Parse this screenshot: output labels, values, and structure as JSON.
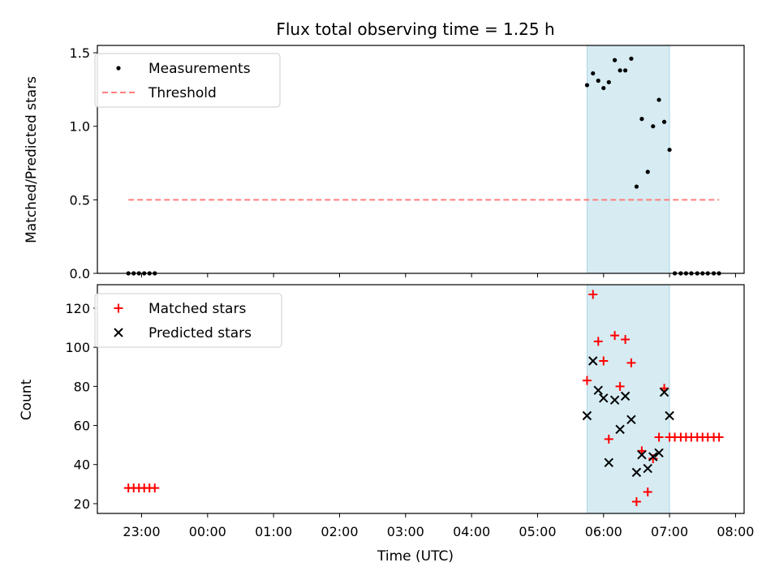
{
  "chart_data": {
    "title": "Flux total observing time = 1.25 h",
    "xlabel": "Time (UTC)",
    "x_tick_labels": [
      "23:00",
      "00:00",
      "01:00",
      "02:00",
      "03:00",
      "04:00",
      "05:00",
      "06:00",
      "07:00",
      "08:00"
    ],
    "x_ticks_hours": [
      23,
      24,
      25,
      26,
      27,
      28,
      29,
      30,
      31,
      32
    ],
    "xlim_hours": [
      22.33,
      32.13
    ],
    "shaded_span_hours": [
      29.75,
      31.0
    ],
    "shaded_color": "#add8e6",
    "panels": [
      {
        "type": "scatter",
        "ylabel": "Matched/Predicted stars",
        "ylim": [
          0,
          1.55
        ],
        "yticks": [
          0,
          0.5,
          1,
          1.5
        ],
        "ytick_labels": [
          "0.0",
          "0.5",
          "1.0",
          "1.5"
        ],
        "legend_position": "top-left",
        "series": [
          {
            "name": "Measurements",
            "marker": "dot",
            "color": "#000000",
            "points": [
              [
                22.8,
                0
              ],
              [
                22.88,
                0
              ],
              [
                22.96,
                0
              ],
              [
                23.04,
                0
              ],
              [
                23.12,
                0
              ],
              [
                23.2,
                0
              ],
              [
                29.75,
                1.28
              ],
              [
                29.84,
                1.36
              ],
              [
                29.92,
                1.31
              ],
              [
                30.0,
                1.26
              ],
              [
                30.08,
                1.3
              ],
              [
                30.17,
                1.45
              ],
              [
                30.25,
                1.38
              ],
              [
                30.33,
                1.38
              ],
              [
                30.42,
                1.46
              ],
              [
                30.5,
                0.59
              ],
              [
                30.58,
                1.05
              ],
              [
                30.67,
                0.69
              ],
              [
                30.75,
                1.0
              ],
              [
                30.84,
                1.18
              ],
              [
                30.92,
                1.03
              ],
              [
                31.0,
                0.84
              ],
              [
                31.08,
                0
              ],
              [
                31.17,
                0
              ],
              [
                31.25,
                0
              ],
              [
                31.33,
                0
              ],
              [
                31.42,
                0
              ],
              [
                31.5,
                0
              ],
              [
                31.58,
                0
              ],
              [
                31.67,
                0
              ],
              [
                31.75,
                0
              ]
            ]
          },
          {
            "name": "Threshold",
            "marker": "dashed-line",
            "color": "#ff7f7f",
            "points": [
              [
                22.8,
                0.5
              ],
              [
                31.75,
                0.5
              ]
            ]
          }
        ]
      },
      {
        "type": "scatter",
        "ylabel": "Count",
        "ylim": [
          15,
          132
        ],
        "yticks": [
          20,
          40,
          60,
          80,
          100,
          120
        ],
        "ytick_labels": [
          "20",
          "40",
          "60",
          "80",
          "100",
          "120"
        ],
        "legend_position": "top-left",
        "series": [
          {
            "name": "Matched stars",
            "marker": "plus",
            "color": "#ff0000",
            "points": [
              [
                22.8,
                28
              ],
              [
                22.88,
                28
              ],
              [
                22.96,
                28
              ],
              [
                23.04,
                28
              ],
              [
                23.12,
                28
              ],
              [
                23.2,
                28
              ],
              [
                29.75,
                83
              ],
              [
                29.84,
                127
              ],
              [
                29.92,
                103
              ],
              [
                30.0,
                93
              ],
              [
                30.08,
                53
              ],
              [
                30.17,
                106
              ],
              [
                30.25,
                80
              ],
              [
                30.33,
                104
              ],
              [
                30.42,
                92
              ],
              [
                30.5,
                21
              ],
              [
                30.58,
                47
              ],
              [
                30.67,
                26
              ],
              [
                30.75,
                43
              ],
              [
                30.84,
                54
              ],
              [
                30.92,
                79
              ],
              [
                31.0,
                54
              ],
              [
                31.08,
                54
              ],
              [
                31.17,
                54
              ],
              [
                31.25,
                54
              ],
              [
                31.33,
                54
              ],
              [
                31.42,
                54
              ],
              [
                31.5,
                54
              ],
              [
                31.58,
                54
              ],
              [
                31.67,
                54
              ],
              [
                31.75,
                54
              ]
            ]
          },
          {
            "name": "Predicted stars",
            "marker": "x",
            "color": "#000000",
            "points": [
              [
                29.75,
                65
              ],
              [
                29.84,
                93
              ],
              [
                29.92,
                78
              ],
              [
                30.0,
                74
              ],
              [
                30.08,
                41
              ],
              [
                30.17,
                73
              ],
              [
                30.25,
                58
              ],
              [
                30.33,
                75
              ],
              [
                30.42,
                63
              ],
              [
                30.5,
                36
              ],
              [
                30.58,
                45
              ],
              [
                30.67,
                38
              ],
              [
                30.75,
                44
              ],
              [
                30.84,
                46
              ],
              [
                30.92,
                77
              ],
              [
                31.0,
                65
              ]
            ]
          }
        ]
      }
    ]
  }
}
